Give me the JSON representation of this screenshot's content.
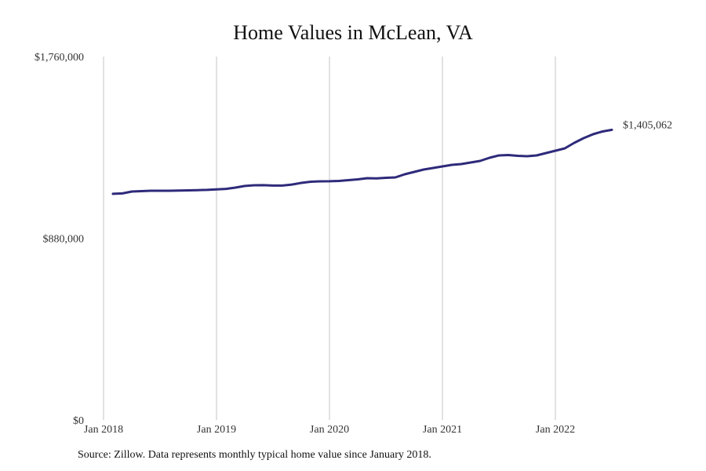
{
  "chart_data": {
    "type": "line",
    "title": "Home Values in McLean, VA",
    "source": "Source: Zillow. Data represents monthly typical home value since January 2018.",
    "xlabel": "",
    "ylabel": "",
    "ylim": [
      0,
      1760000
    ],
    "y_ticks": [
      "$0",
      "$880,000",
      "$1,760,000"
    ],
    "y_tick_values": [
      0,
      880000,
      1760000
    ],
    "x_ticks": [
      "Jan 2018",
      "Jan 2019",
      "Jan 2020",
      "Jan 2021",
      "Jan 2022"
    ],
    "x_tick_values": [
      "2018-01",
      "2019-01",
      "2020-01",
      "2021-01",
      "2022-01"
    ],
    "xlim": [
      "2018-01",
      "2022-12"
    ],
    "grid": "vertical",
    "line_color": "#2e2a7a",
    "end_label": "$1,405,062",
    "series": [
      {
        "x": [
          "2018-02",
          "2018-03",
          "2018-04",
          "2018-05",
          "2018-06",
          "2018-07",
          "2018-08",
          "2018-09",
          "2018-10",
          "2018-11",
          "2018-12",
          "2019-01",
          "2019-02",
          "2019-03",
          "2019-04",
          "2019-05",
          "2019-06",
          "2019-07",
          "2019-08",
          "2019-09",
          "2019-10",
          "2019-11",
          "2019-12",
          "2020-01",
          "2020-02",
          "2020-03",
          "2020-04",
          "2020-05",
          "2020-06",
          "2020-07",
          "2020-08",
          "2020-09",
          "2020-10",
          "2020-11",
          "2020-12",
          "2021-01",
          "2021-02",
          "2021-03",
          "2021-04",
          "2021-05",
          "2021-06",
          "2021-07",
          "2021-08",
          "2021-09",
          "2021-10",
          "2021-11",
          "2021-12",
          "2022-01",
          "2022-02",
          "2022-03",
          "2022-04",
          "2022-05",
          "2022-06",
          "2022-07"
        ],
        "values": [
          1095000,
          1097000,
          1106000,
          1108000,
          1110000,
          1110000,
          1110000,
          1111000,
          1112000,
          1113000,
          1114000,
          1117000,
          1119000,
          1125000,
          1133000,
          1136500,
          1137000,
          1135000,
          1135000,
          1140000,
          1148000,
          1153700,
          1155600,
          1156000,
          1157500,
          1161300,
          1165000,
          1170800,
          1170000,
          1172700,
          1174600,
          1189800,
          1201200,
          1212600,
          1220200,
          1227800,
          1235400,
          1239200,
          1246800,
          1254400,
          1269600,
          1281000,
          1283000,
          1279100,
          1277200,
          1281000,
          1292400,
          1303800,
          1315200,
          1341800,
          1364700,
          1383700,
          1397000,
          1405062
        ]
      }
    ]
  }
}
